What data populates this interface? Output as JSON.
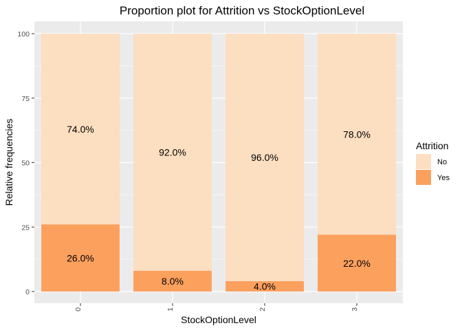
{
  "chart_data": {
    "type": "bar",
    "stacked": true,
    "title": "Proportion plot for Attrition vs StockOptionLevel",
    "xlabel": "StockOptionLevel",
    "ylabel": "Relative frequencies",
    "categories": [
      "0",
      "1",
      "2",
      "3"
    ],
    "ylim": [
      0,
      100
    ],
    "yticks": [
      "0",
      "25",
      "50",
      "75",
      "100"
    ],
    "series": [
      {
        "name": "Yes",
        "color": "#FCA05E",
        "values": [
          26.0,
          8.0,
          4.0,
          22.0
        ],
        "labels": [
          "26.0%",
          "8.0%",
          "4.0%",
          "22.0%"
        ]
      },
      {
        "name": "No",
        "color": "#FCDEC1",
        "values": [
          74.0,
          92.0,
          96.0,
          78.0
        ],
        "labels": [
          "74.0%",
          "92.0%",
          "96.0%",
          "78.0%"
        ]
      }
    ],
    "legend": {
      "title": "Attrition",
      "placement": "right",
      "items": [
        {
          "label": "No",
          "color": "#FCDEC1"
        },
        {
          "label": "Yes",
          "color": "#FCA05E"
        }
      ]
    },
    "grid": true,
    "panel_background": "#EBEBEB"
  }
}
